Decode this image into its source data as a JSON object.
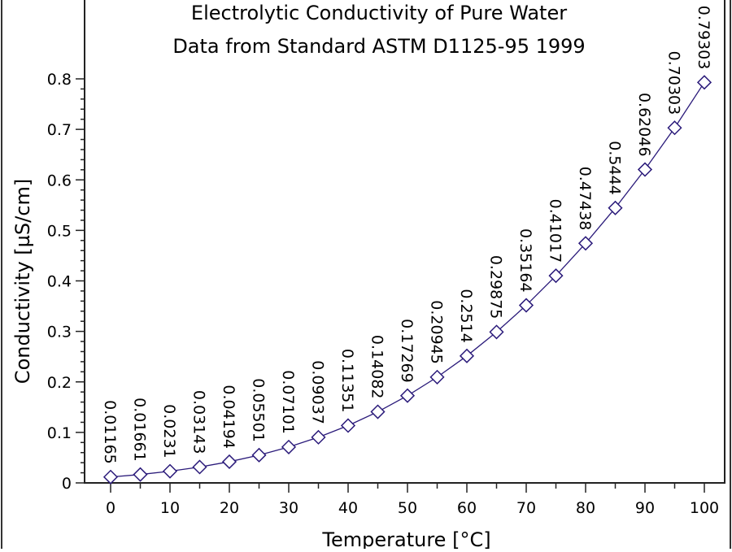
{
  "chart_data": {
    "type": "line",
    "title": "Electrolytic Conductivity of Pure Water",
    "subtitle": "Data from Standard ASTM D1125-95 1999",
    "xlabel": "Temperature [°C]",
    "ylabel": "Conductivity [µS/cm]",
    "xlim": [
      -5,
      103
    ],
    "ylim": [
      0,
      0.8
    ],
    "xticks": [
      "0",
      "10",
      "20",
      "30",
      "40",
      "50",
      "60",
      "70",
      "80",
      "90",
      "100"
    ],
    "yticks": [
      "0",
      "0.1",
      "0.2",
      "0.3",
      "0.4",
      "0.5",
      "0.6",
      "0.7",
      "0.8"
    ],
    "grid": false,
    "marker": "diamond",
    "line_color": "#2a1a7a",
    "x": [
      0,
      5,
      10,
      15,
      20,
      25,
      30,
      35,
      40,
      45,
      50,
      55,
      60,
      65,
      70,
      75,
      80,
      85,
      90,
      95,
      100
    ],
    "values": [
      0.01165,
      0.01661,
      0.0231,
      0.03143,
      0.04194,
      0.05501,
      0.07101,
      0.09037,
      0.11351,
      0.14082,
      0.17269,
      0.20945,
      0.2514,
      0.29875,
      0.35164,
      0.41017,
      0.47438,
      0.5444,
      0.62046,
      0.70303,
      0.79303
    ],
    "data_labels": [
      "0.01165",
      "0.01661",
      "0.0231",
      "0.03143",
      "0.04194",
      "0.05501",
      "0.07101",
      "0.09037",
      "0.11351",
      "0.14082",
      "0.17269",
      "0.20945",
      "0.2514",
      "0.29875",
      "0.35164",
      "0.41017",
      "0.47438",
      "0.5444",
      "0.62046",
      "0.70303",
      "0.79303"
    ]
  }
}
